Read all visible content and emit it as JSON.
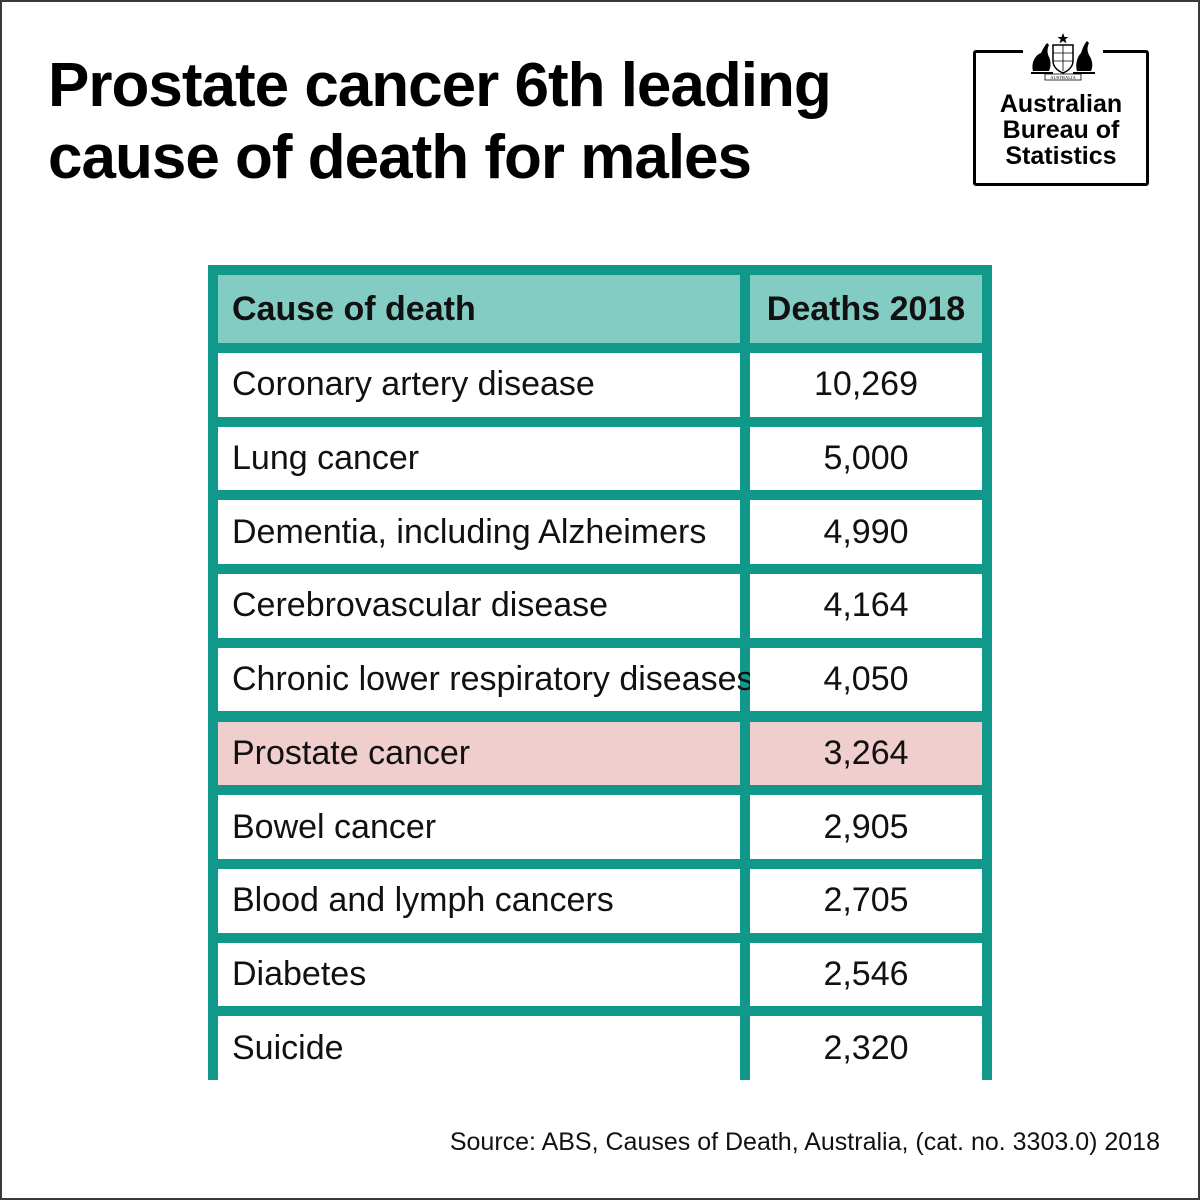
{
  "title_lines": [
    "Prostate cancer 6th leading",
    "cause of death for males"
  ],
  "logo": {
    "crest_label": "AUSTRALIA",
    "lines": [
      "Australian",
      "Bureau of",
      "Statistics"
    ]
  },
  "colors": {
    "border": "#10988a",
    "header_fill": "#82ccc4",
    "highlight_fill": "#f0cece"
  },
  "source": "Source: ABS, Causes of Death, Australia, (cat. no. 3303.0) 2018",
  "chart_data": {
    "type": "table",
    "title": "Prostate cancer 6th leading cause of death for males",
    "columns": [
      "Cause of death",
      "Deaths 2018"
    ],
    "rows": [
      {
        "cause": "Coronary artery disease",
        "deaths": "10,269"
      },
      {
        "cause": "Lung cancer",
        "deaths": "5,000"
      },
      {
        "cause": "Dementia, including Alzheimers",
        "deaths": "4,990"
      },
      {
        "cause": "Cerebrovascular disease",
        "deaths": "4,164"
      },
      {
        "cause": "Chronic lower respiratory diseases",
        "deaths": "4,050"
      },
      {
        "cause": "Prostate cancer",
        "deaths": "3,264",
        "highlight": true
      },
      {
        "cause": "Bowel cancer",
        "deaths": "2,905"
      },
      {
        "cause": "Blood and lymph cancers",
        "deaths": "2,705"
      },
      {
        "cause": "Diabetes",
        "deaths": "2,546"
      },
      {
        "cause": "Suicide",
        "deaths": "2,320"
      }
    ]
  }
}
